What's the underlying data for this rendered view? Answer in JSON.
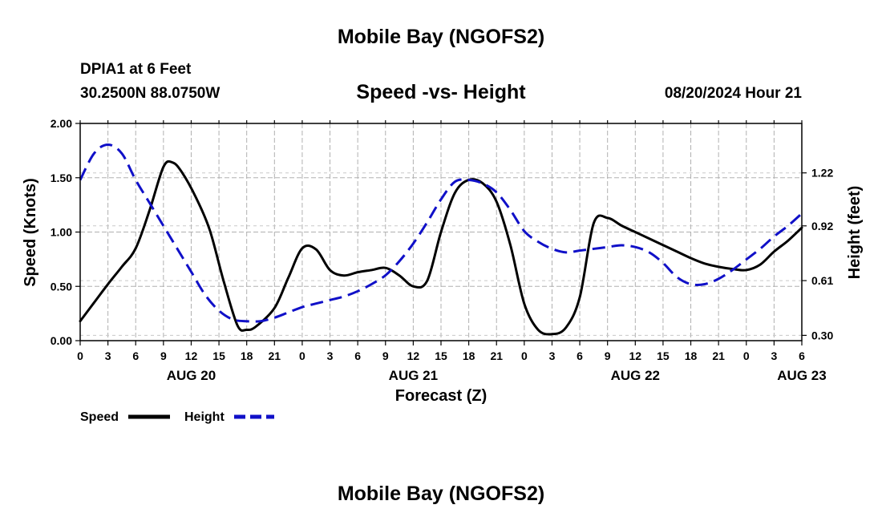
{
  "chart_data": {
    "type": "line",
    "title": "Mobile Bay (NGOFS2)",
    "station": "DPIA1 at 6 Feet",
    "location": "30.2500N  88.0750W",
    "subtitle": "Speed -vs- Height",
    "timestamp": "08/20/2024 Hour 21",
    "footer_title": "Mobile Bay (NGOFS2)",
    "xlabel": "Forecast (Z)",
    "ylabel_left": "Speed (Knots)",
    "ylabel_right": "Height (feet)",
    "x_tick_labels": [
      "0",
      "3",
      "6",
      "9",
      "12",
      "15",
      "18",
      "21",
      "0",
      "3",
      "6",
      "9",
      "12",
      "15",
      "18",
      "21",
      "0",
      "3",
      "6",
      "9",
      "12",
      "15",
      "18",
      "21",
      "0",
      "3",
      "6"
    ],
    "day_labels": [
      {
        "label": "AUG 20",
        "hour": 12
      },
      {
        "label": "AUG 21",
        "hour": 36
      },
      {
        "label": "AUG 22",
        "hour": 60
      },
      {
        "label": "AUG 23",
        "hour": 78
      }
    ],
    "xlim": [
      0,
      78
    ],
    "ylim_left": [
      0,
      2
    ],
    "y_ticks_left": [
      "0.00",
      "0.50",
      "1.00",
      "1.50",
      "2.00"
    ],
    "ylim_right": [
      0.27,
      1.5
    ],
    "y_ticks_right": [
      "0.30",
      "0.61",
      "0.92",
      "1.22"
    ],
    "series": [
      {
        "name": "Speed",
        "color": "#000000",
        "axis": "left",
        "style": "solid",
        "x": [
          0,
          1.5,
          3,
          4.5,
          6,
          7.5,
          9,
          10,
          11,
          12.5,
          14,
          15.5,
          17,
          18,
          19,
          21,
          22.5,
          24,
          25.5,
          27,
          28.5,
          30,
          31.5,
          33,
          34.5,
          36,
          37.5,
          39,
          40.5,
          42,
          43.5,
          45,
          46.5,
          48,
          49.5,
          51,
          52.5,
          54,
          55.5,
          57,
          58.5,
          60,
          61.5,
          63,
          64.5,
          66,
          67.5,
          69,
          70.5,
          72,
          73.5,
          75,
          76.5,
          78
        ],
        "values": [
          0.18,
          0.35,
          0.52,
          0.68,
          0.85,
          1.2,
          1.6,
          1.64,
          1.55,
          1.32,
          1.02,
          0.55,
          0.14,
          0.1,
          0.13,
          0.3,
          0.58,
          0.85,
          0.84,
          0.65,
          0.6,
          0.63,
          0.65,
          0.67,
          0.6,
          0.5,
          0.55,
          1.0,
          1.36,
          1.48,
          1.45,
          1.28,
          0.88,
          0.34,
          0.1,
          0.06,
          0.12,
          0.4,
          1.08,
          1.13,
          1.06,
          1.0,
          0.94,
          0.88,
          0.82,
          0.76,
          0.71,
          0.68,
          0.66,
          0.65,
          0.7,
          0.82,
          0.92,
          1.04
        ]
      },
      {
        "name": "Height",
        "color": "#1010c8",
        "axis": "right",
        "style": "dashed",
        "x": [
          0,
          1.5,
          3,
          4.5,
          6,
          7.5,
          9,
          10.5,
          12,
          13.5,
          15,
          16.5,
          18,
          19.5,
          21,
          22.5,
          24,
          25.5,
          27,
          28.5,
          30,
          31.5,
          33,
          34.5,
          36,
          37.5,
          39,
          40.5,
          42,
          43.5,
          45,
          46.5,
          48,
          49.5,
          51,
          52.5,
          54,
          55.5,
          57,
          58.5,
          60,
          61.5,
          63,
          64.5,
          66,
          67.5,
          69,
          70.5,
          72,
          73.5,
          75,
          76.5,
          78
        ],
        "values": [
          1.18,
          1.33,
          1.38,
          1.33,
          1.18,
          1.05,
          0.92,
          0.79,
          0.66,
          0.53,
          0.44,
          0.39,
          0.38,
          0.38,
          0.4,
          0.43,
          0.46,
          0.48,
          0.5,
          0.52,
          0.55,
          0.59,
          0.64,
          0.72,
          0.82,
          0.94,
          1.07,
          1.17,
          1.18,
          1.16,
          1.11,
          1.01,
          0.89,
          0.83,
          0.79,
          0.77,
          0.78,
          0.79,
          0.8,
          0.81,
          0.8,
          0.77,
          0.71,
          0.63,
          0.59,
          0.59,
          0.62,
          0.67,
          0.73,
          0.79,
          0.86,
          0.92,
          0.99
        ]
      }
    ]
  }
}
